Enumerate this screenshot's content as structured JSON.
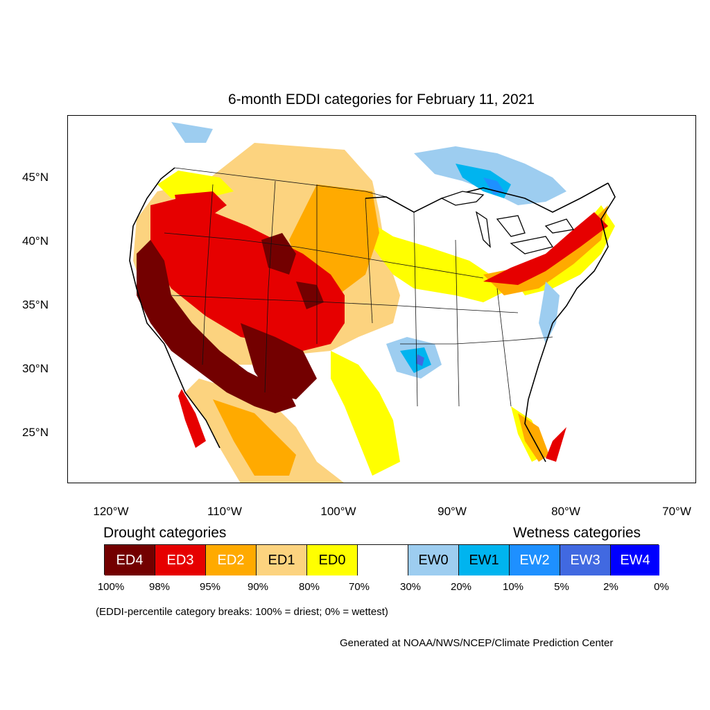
{
  "title": "6-month EDDI categories for February 11, 2021",
  "axes": {
    "lat_labels": [
      "45°N",
      "40°N",
      "35°N",
      "30°N",
      "25°N"
    ],
    "lon_labels": [
      "120°W",
      "110°W",
      "100°W",
      "90°W",
      "80°W",
      "70°W"
    ]
  },
  "legend": {
    "drought_heading": "Drought categories",
    "wetness_heading": "Wetness categories",
    "categories": [
      {
        "label": "ED4",
        "color": "#730000",
        "text_color": "#ffffff"
      },
      {
        "label": "ED3",
        "color": "#e60000",
        "text_color": "#ffffff"
      },
      {
        "label": "ED2",
        "color": "#ffaa00",
        "text_color": "#ffffff"
      },
      {
        "label": "ED1",
        "color": "#fcd37f",
        "text_color": "#000000"
      },
      {
        "label": "ED0",
        "color": "#ffff00",
        "text_color": "#000000"
      },
      {
        "label": "",
        "color": "#ffffff",
        "text_color": "#000000"
      },
      {
        "label": "EW0",
        "color": "#9dcdf0",
        "text_color": "#000000"
      },
      {
        "label": "EW1",
        "color": "#00b4ef",
        "text_color": "#000000"
      },
      {
        "label": "EW2",
        "color": "#1e90ff",
        "text_color": "#ffffff"
      },
      {
        "label": "EW3",
        "color": "#4169e1",
        "text_color": "#ffffff"
      },
      {
        "label": "EW4",
        "color": "#0000ff",
        "text_color": "#ffffff"
      }
    ],
    "breaks": [
      "100%",
      "98%",
      "95%",
      "90%",
      "80%",
      "70%",
      "30%",
      "20%",
      "10%",
      "5%",
      "2%",
      "0%"
    ]
  },
  "note": "(EDDI-percentile category breaks: 100% = driest; 0% = wettest)",
  "credit": "Generated at NOAA/NWS/NCEP/Climate Prediction Center"
}
